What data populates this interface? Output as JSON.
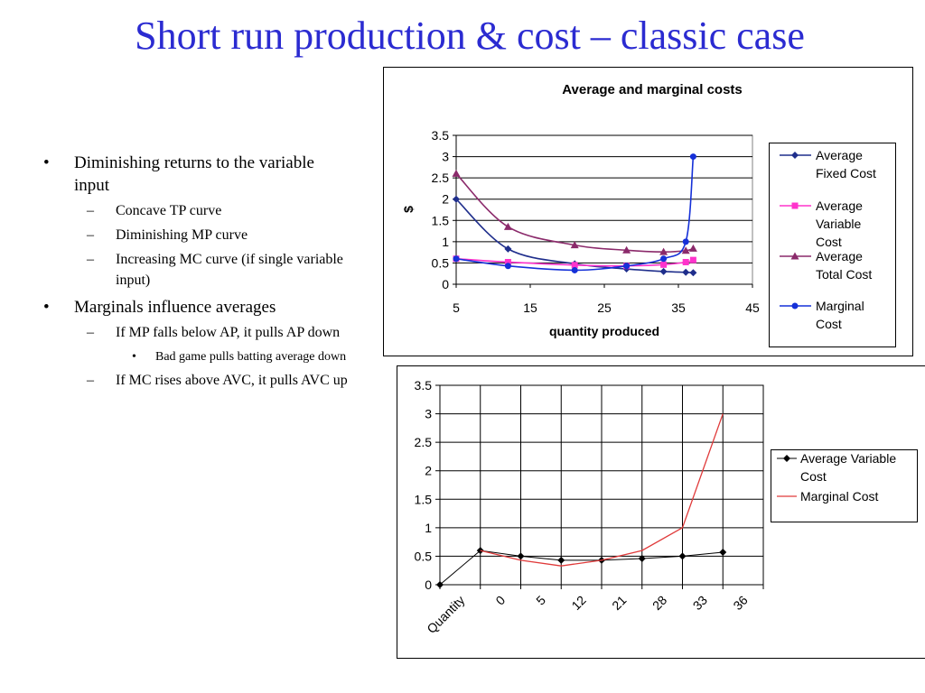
{
  "slide": {
    "title": "Short run production & cost – classic case"
  },
  "bullets": [
    {
      "level": 1,
      "text": "Diminishing returns to the variable input"
    },
    {
      "level": 2,
      "text": "Concave TP curve"
    },
    {
      "level": 2,
      "text": "Diminishing MP curve"
    },
    {
      "level": 2,
      "text": "Increasing MC curve (if single variable input)"
    },
    {
      "level": 1,
      "text": "Marginals influence averages"
    },
    {
      "level": 2,
      "text": "If MP falls below AP, it pulls AP down"
    },
    {
      "level": 3,
      "text": "Bad game pulls batting average down"
    },
    {
      "level": 2,
      "text": "If MC rises above AVC, it pulls AVC up"
    }
  ],
  "chart_data": [
    {
      "type": "scatter",
      "title": "Average and marginal costs",
      "xlabel": "quantity produced",
      "ylabel": "$",
      "xlim": [
        5,
        45
      ],
      "ylim": [
        0,
        3.5
      ],
      "xticks": [
        5,
        15,
        25,
        35,
        45
      ],
      "yticks": [
        0,
        0.5,
        1,
        1.5,
        2,
        2.5,
        3,
        3.5
      ],
      "grid": "horizontal",
      "legend": "right",
      "series": [
        {
          "name": "Average Fixed Cost",
          "color": "#1f2e8c",
          "marker": "diamond",
          "x": [
            5,
            12,
            21,
            28,
            33,
            36,
            37
          ],
          "y": [
            2.0,
            0.83,
            0.48,
            0.36,
            0.3,
            0.28,
            0.27
          ]
        },
        {
          "name": "Average Variable Cost",
          "color": "#ff33cc",
          "marker": "square",
          "x": [
            5,
            12,
            21,
            28,
            33,
            36,
            37
          ],
          "y": [
            0.6,
            0.52,
            0.45,
            0.43,
            0.46,
            0.52,
            0.57
          ]
        },
        {
          "name": "Average Total Cost",
          "color": "#8b2a6b",
          "marker": "triangle",
          "x": [
            5,
            12,
            21,
            28,
            33,
            36,
            37
          ],
          "y": [
            2.6,
            1.35,
            0.92,
            0.8,
            0.76,
            0.79,
            0.84
          ]
        },
        {
          "name": "Marginal Cost",
          "color": "#1530d8",
          "marker": "circle",
          "x": [
            5,
            12,
            21,
            28,
            33,
            36,
            37
          ],
          "y": [
            0.6,
            0.43,
            0.33,
            0.43,
            0.6,
            1.0,
            3.0
          ]
        }
      ]
    },
    {
      "type": "line",
      "categories": [
        "Quantity",
        "0",
        "5",
        "12",
        "21",
        "28",
        "33",
        "36"
      ],
      "ylim": [
        0,
        3.5
      ],
      "yticks": [
        0,
        0.5,
        1,
        1.5,
        2,
        2.5,
        3,
        3.5
      ],
      "grid": "both",
      "legend": "right",
      "series": [
        {
          "name": "Average Variable Cost",
          "color": "#000000",
          "marker": "diamond",
          "values": [
            0,
            0.6,
            0.5,
            0.43,
            0.43,
            0.46,
            0.5,
            0.57
          ]
        },
        {
          "name": "Marginal Cost",
          "color": "#e03a3a",
          "marker": "none",
          "values": [
            null,
            0.6,
            0.43,
            0.33,
            0.43,
            0.6,
            1.0,
            3.0
          ]
        }
      ]
    }
  ]
}
